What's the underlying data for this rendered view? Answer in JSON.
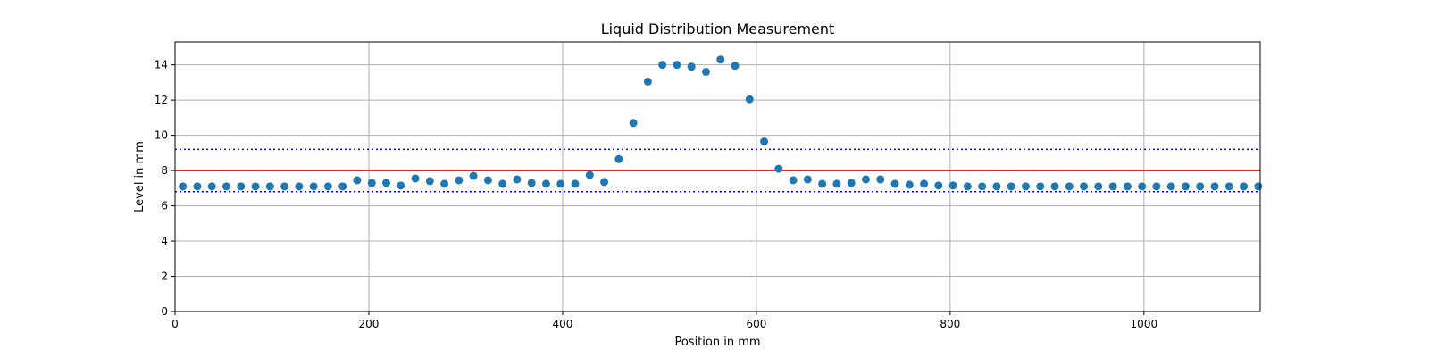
{
  "chart_data": {
    "type": "scatter",
    "title": "Liquid Distribution Measurement",
    "xlabel": "Position in mm",
    "ylabel": "Level in mm",
    "xlim": [
      0,
      1120
    ],
    "ylim": [
      0,
      15.3
    ],
    "xticks": [
      0,
      200,
      400,
      600,
      800,
      1000
    ],
    "yticks": [
      0,
      2,
      4,
      6,
      8,
      10,
      12,
      14
    ],
    "grid": true,
    "colors": {
      "points": "#1f77b4",
      "reference_line": "#ff0000",
      "tolerance_lines": "#0000ff",
      "grid": "#b0b0b0"
    },
    "reference_line": {
      "y": 8.0,
      "style": "solid"
    },
    "tolerance_lines": [
      {
        "y": 9.2,
        "style": "dotted"
      },
      {
        "y": 6.8,
        "style": "dotted"
      }
    ],
    "series": [
      {
        "x": [
          8,
          23,
          38,
          53,
          68,
          83,
          98,
          113,
          128,
          143,
          158,
          173,
          188,
          203,
          218,
          233,
          248,
          263,
          278,
          293,
          308,
          323,
          338,
          353,
          368,
          383,
          398,
          413,
          428,
          443,
          458,
          473,
          488,
          503,
          518,
          533,
          548,
          563,
          578,
          593,
          608,
          623,
          638,
          653,
          668,
          683,
          698,
          713,
          728,
          743,
          758,
          773,
          788,
          803,
          818,
          833,
          848,
          863,
          878,
          893,
          908,
          923,
          938,
          953,
          968,
          983,
          998,
          1013,
          1028,
          1043,
          1058,
          1073,
          1088,
          1103,
          1118
        ],
        "y": [
          7.1,
          7.1,
          7.1,
          7.1,
          7.1,
          7.1,
          7.1,
          7.1,
          7.1,
          7.1,
          7.1,
          7.1,
          7.45,
          7.3,
          7.3,
          7.15,
          7.55,
          7.4,
          7.25,
          7.45,
          7.7,
          7.45,
          7.25,
          7.5,
          7.3,
          7.25,
          7.25,
          7.25,
          7.75,
          7.35,
          8.65,
          10.7,
          13.05,
          14.0,
          14.0,
          13.9,
          13.6,
          14.3,
          13.95,
          12.05,
          9.65,
          8.1,
          7.45,
          7.5,
          7.25,
          7.25,
          7.3,
          7.5,
          7.5,
          7.25,
          7.2,
          7.25,
          7.15,
          7.15,
          7.1,
          7.1,
          7.1,
          7.1,
          7.1,
          7.1,
          7.1,
          7.1,
          7.1,
          7.1,
          7.1,
          7.1,
          7.1,
          7.1,
          7.1,
          7.1,
          7.1,
          7.1,
          7.1,
          7.1,
          7.1
        ]
      }
    ]
  }
}
